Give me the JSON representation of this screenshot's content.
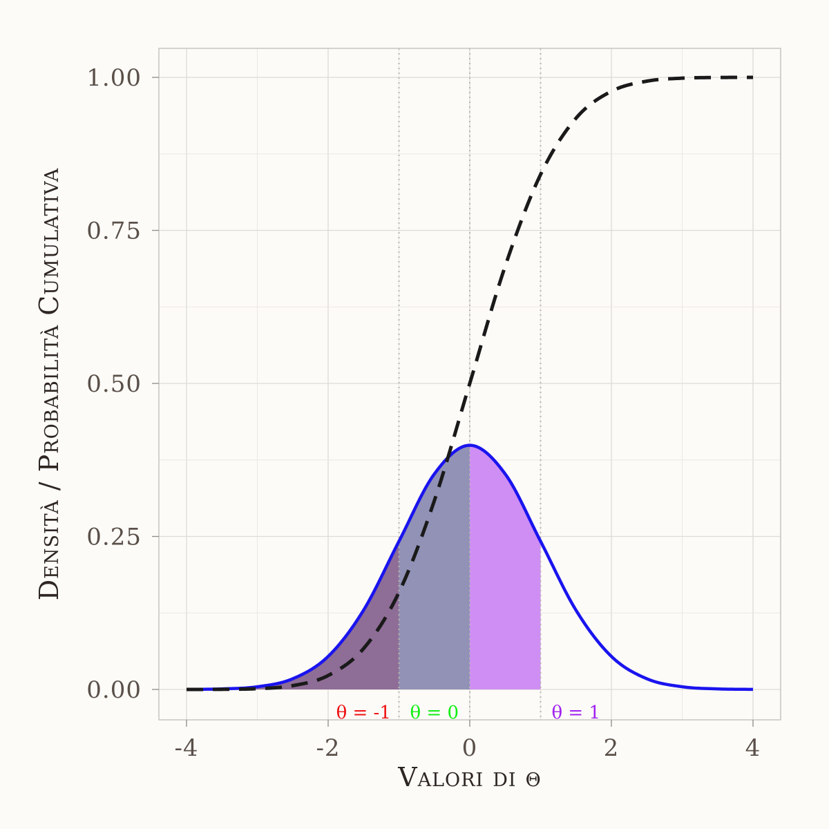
{
  "chart_data": {
    "type": "line",
    "title": "",
    "xlabel": "Valori di θ",
    "ylabel": "Densità / Probabilità Cumulativa",
    "xlim": [
      -4.2,
      4.2
    ],
    "ylim": [
      -0.1,
      2.0
    ],
    "x_ticks": [
      -4,
      -2,
      0,
      2,
      4
    ],
    "x_tick_labels": [
      "-4",
      "-2",
      "0",
      "2",
      "4"
    ],
    "y_ticks": [
      0,
      0.25,
      0.5,
      0.75,
      1.0
    ],
    "y_tick_labels": [
      "0.00",
      "0.25",
      "0.50",
      "0.75",
      "1.00"
    ],
    "grid": true,
    "legend": "none",
    "vertical_reference_lines": [
      -1,
      0,
      1
    ],
    "series": [
      {
        "style": "solid",
        "color": "#1a14ee",
        "x": [
          -4,
          -3.5,
          -3,
          -2.5,
          -2,
          -1.5,
          -1,
          -0.5,
          0,
          0.5,
          1,
          1.5,
          2,
          2.5,
          3,
          3.5,
          4
        ],
        "values": [
          0.0001,
          0.0009,
          0.0044,
          0.0175,
          0.054,
          0.1295,
          0.242,
          0.3521,
          0.3989,
          0.3521,
          0.242,
          0.1295,
          0.054,
          0.0175,
          0.0044,
          0.0009,
          0.0001
        ]
      },
      {
        "style": "dashed",
        "color": "#1a1a1a",
        "x": [
          -4,
          -3.5,
          -3,
          -2.5,
          -2,
          -1.5,
          -1,
          -0.5,
          0,
          0.5,
          1,
          1.5,
          2,
          2.5,
          3,
          3.5,
          4
        ],
        "values": [
          0.0,
          0.0002,
          0.0013,
          0.0062,
          0.0228,
          0.0668,
          0.1587,
          0.3085,
          0.5,
          0.6915,
          0.8413,
          0.9332,
          0.9772,
          0.9938,
          0.9987,
          0.9998,
          1.0
        ]
      }
    ],
    "shaded_regions": [
      {
        "from": -4,
        "to": -1,
        "color": "#8e6d96"
      },
      {
        "from": -1,
        "to": 0,
        "color": "#9192b6"
      },
      {
        "from": 0,
        "to": 1,
        "color": "#cf8ef4"
      }
    ],
    "annotations": [
      {
        "text": "θ = -1",
        "x": -1.5,
        "color": "#ee1111"
      },
      {
        "text": "θ = 0",
        "x": -0.5,
        "color": "#11ee11"
      },
      {
        "text": "θ = 1",
        "x": 1.5,
        "color": "#a020f0"
      }
    ]
  }
}
